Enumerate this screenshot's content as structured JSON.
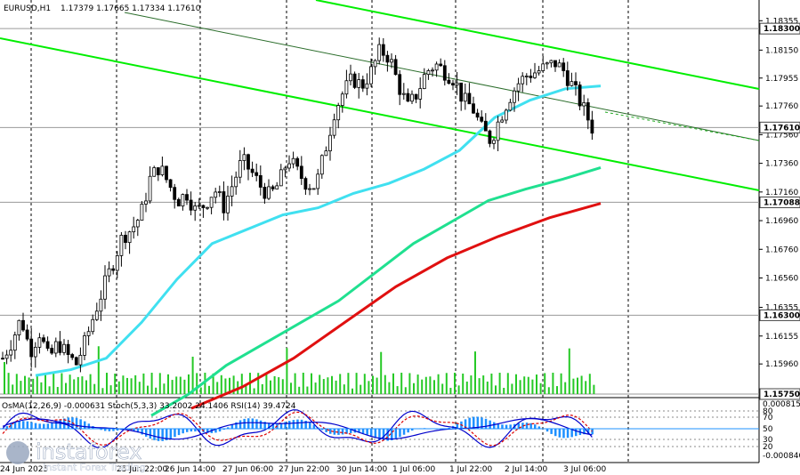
{
  "header": {
    "symbol": "EURUSD,H1",
    "ohlc": "1.17379 1.17665 1.17334 1.17610"
  },
  "indicator_header": "OsMA(12,26,9) -0.000631 Stoch(5,3,3) 33.2002 24.1406 RSI(14) 39.4724",
  "watermark": {
    "brand": "instaforex",
    "tagline": "Instant Forex Trading"
  },
  "colors": {
    "candle": "#000000",
    "channel": "#00ee00",
    "ma_fast": "#40e0f0",
    "ma_mid": "#20e090",
    "ma_slow": "#e01010",
    "osma": "#1e90ff",
    "stoch_main": "#0000cc",
    "stoch_signal": "#dd0000",
    "rsi": "#0000cc"
  },
  "chart_data": {
    "type": "candlestick",
    "price_axis_ticks": [
      "1.18355",
      "1.18150",
      "1.17955",
      "1.17760",
      "1.17560",
      "1.17360",
      "1.17160",
      "1.16960",
      "1.16760",
      "1.16560",
      "1.16355",
      "1.16155",
      "1.15960"
    ],
    "highlighted_levels": [
      "1.18300",
      "1.17610",
      "1.17088",
      "1.16300",
      "1.15750"
    ],
    "time_labels": [
      "24 Jun 2025",
      "25 Jun 22:00",
      "26 Jun 14:00",
      "27 Jun 06:00",
      "27 Jun 22:00",
      "30 Jun 14:00",
      "1 Jul 06:00",
      "1 Jul 22:00",
      "2 Jul 14:00",
      "3 Jul 06:00"
    ],
    "indicator_axis_labels": [
      "0.000815",
      "80",
      "70",
      "50",
      "30",
      "20",
      "-0.000840"
    ],
    "ylim": [
      1.1575,
      1.1845
    ],
    "series_close_path": [
      1.16,
      1.1612,
      1.1628,
      1.1605,
      1.1618,
      1.1599,
      1.1611,
      1.1602,
      1.1596,
      1.1612,
      1.1632,
      1.165,
      1.1667,
      1.1685,
      1.169,
      1.17,
      1.1725,
      1.1734,
      1.1722,
      1.171,
      1.1715,
      1.1702,
      1.1708,
      1.1718,
      1.1706,
      1.1722,
      1.1738,
      1.173,
      1.172,
      1.1713,
      1.1722,
      1.174,
      1.173,
      1.1722,
      1.172,
      1.1745,
      1.1772,
      1.1786,
      1.1795,
      1.179,
      1.18,
      1.1815,
      1.181,
      1.179,
      1.1775,
      1.1785,
      1.18,
      1.1805,
      1.18,
      1.1795,
      1.178,
      1.1775,
      1.176,
      1.1752,
      1.1768,
      1.1782,
      1.1792,
      1.1798,
      1.18,
      1.1803,
      1.1806,
      1.18,
      1.1788,
      1.1775,
      1.1761
    ],
    "ma_fast": [
      1.1588,
      1.1592,
      1.16,
      1.1625,
      1.1655,
      1.168,
      1.169,
      1.17,
      1.1705,
      1.1715,
      1.1722,
      1.1732,
      1.1745,
      1.1768,
      1.178,
      1.1788,
      1.179
    ],
    "ma_mid": [
      1.156,
      1.1575,
      1.1595,
      1.161,
      1.1625,
      1.164,
      1.166,
      1.168,
      1.1695,
      1.171,
      1.1718,
      1.1725,
      1.1733
    ],
    "ma_slow": [
      1.1565,
      1.158,
      1.16,
      1.1625,
      1.165,
      1.167,
      1.1685,
      1.1698,
      1.1708
    ]
  }
}
